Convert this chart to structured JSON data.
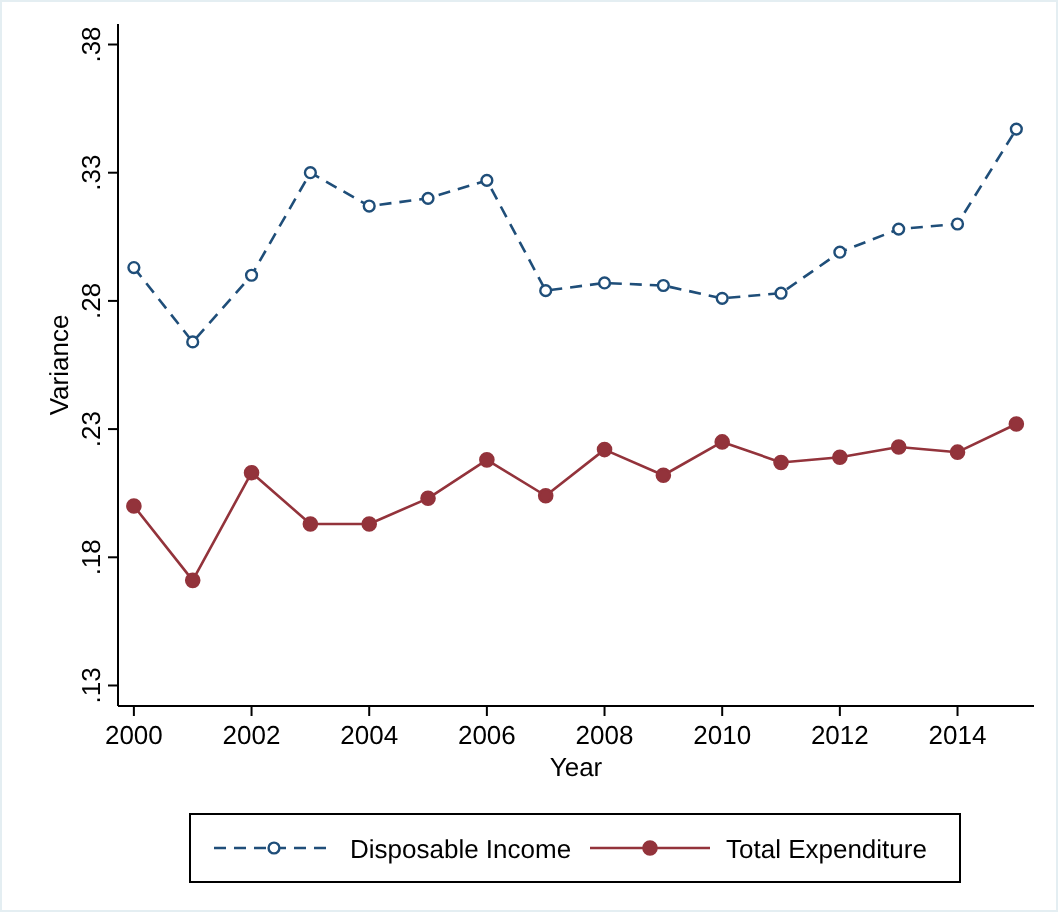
{
  "chart_data": {
    "type": "line",
    "xlabel": "Year",
    "ylabel": "Variance",
    "x": [
      2000,
      2001,
      2002,
      2003,
      2004,
      2005,
      2006,
      2007,
      2008,
      2009,
      2010,
      2011,
      2012,
      2013,
      2014,
      2015
    ],
    "xlim": [
      1999.73,
      2015.3
    ],
    "xticks": [
      2000,
      2002,
      2004,
      2006,
      2008,
      2010,
      2012,
      2014
    ],
    "ylim": [
      0.122,
      0.388
    ],
    "yticks": [
      {
        "value": 0.13,
        "label": ".13"
      },
      {
        "value": 0.18,
        "label": ".18"
      },
      {
        "value": 0.23,
        "label": ".23"
      },
      {
        "value": 0.28,
        "label": ".28"
      },
      {
        "value": 0.33,
        "label": ".33"
      },
      {
        "value": 0.38,
        "label": ".38"
      }
    ],
    "grid": false,
    "legend": "bottom",
    "series": [
      {
        "name": "Disposable Income",
        "color": "#1f4e79",
        "marker": "circle",
        "line_style": "dashed",
        "values": [
          0.293,
          0.264,
          0.29,
          0.33,
          0.317,
          0.32,
          0.327,
          0.284,
          0.287,
          0.286,
          0.281,
          0.283,
          0.299,
          0.308,
          0.31,
          0.347
        ]
      },
      {
        "name": "Total Expenditure",
        "color": "#93333b",
        "marker": "circle",
        "line_style": "solid",
        "values": [
          0.2,
          0.171,
          0.213,
          0.193,
          0.193,
          0.203,
          0.218,
          0.204,
          0.222,
          0.212,
          0.225,
          0.217,
          0.219,
          0.223,
          0.221,
          0.232
        ]
      }
    ]
  }
}
